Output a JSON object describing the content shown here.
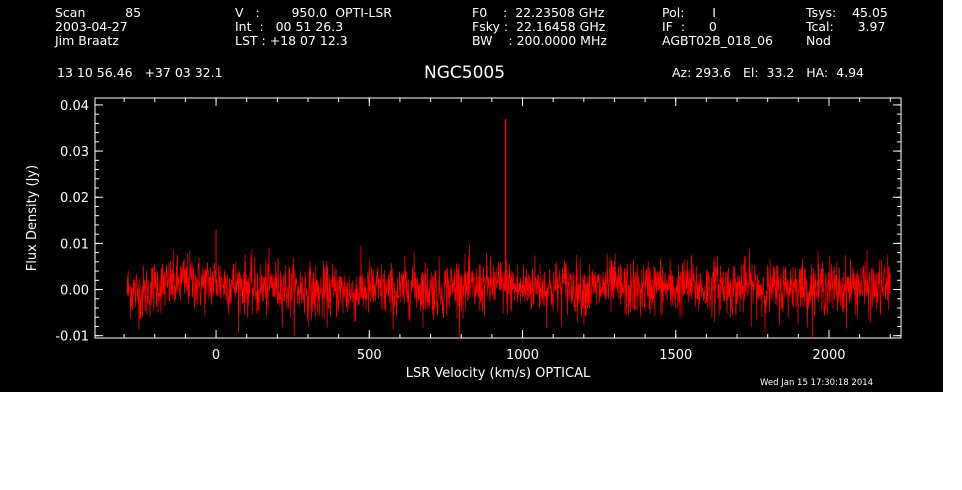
{
  "header": {
    "col1": [
      "Scan          85",
      "2003-04-27",
      "Jim Braatz"
    ],
    "col2": [
      "V   :        950.0  OPTI-LSR",
      "Int  :   00 51 26.3",
      "LST : +18 07 12.3"
    ],
    "col3": [
      "F0    :  22.23508 GHz",
      "Fsky :  22.16458 GHz",
      "BW    : 200.0000 MHz"
    ],
    "col4": [
      "Pol:       I",
      "IF  :      0",
      "AGBT02B_018_06"
    ],
    "col5": [
      "Tsys:    45.05",
      "Tcal:      3.97",
      "Nod"
    ],
    "coords": "13 10 56.46   +37 03 32.1",
    "source": "NGC5005",
    "azel": "Az: 293.6   El:  33.2   HA:  4.94"
  },
  "timestamp": "Wed Jan 15 17:30:18 2014",
  "colors": {
    "background": "#000000",
    "axes": "#ffffff",
    "trace": "#ff0000"
  },
  "chart_data": {
    "type": "line",
    "title": "NGC5005",
    "xlabel": "LSR Velocity (km/s) OPTICAL",
    "ylabel": "Flux Density (Jy)",
    "xlim": [
      -395,
      2235
    ],
    "ylim": [
      -0.0105,
      0.0415
    ],
    "xticks": [
      0,
      500,
      1000,
      1500,
      2000
    ],
    "xtick_labels": [
      "0",
      "500",
      "1000",
      "1500",
      "2000"
    ],
    "yticks": [
      -0.01,
      0.0,
      0.01,
      0.02,
      0.03,
      0.04
    ],
    "ytick_labels": [
      "-0.01",
      "0.00",
      "0.01",
      "0.02",
      "0.03",
      "0.04"
    ],
    "grid": false,
    "legend": "none",
    "series": [
      {
        "x": [
          -290,
          -240,
          -190,
          -140,
          -90,
          -40,
          0,
          40,
          90,
          140,
          190,
          240,
          290,
          340,
          390,
          440,
          490,
          540,
          590,
          640,
          690,
          740,
          790,
          840,
          890,
          945,
          990,
          1040,
          1090,
          1140,
          1190,
          1240,
          1290,
          1340,
          1390,
          1440,
          1490,
          1540,
          1590,
          1640,
          1690,
          1740,
          1790,
          1840,
          1890,
          1940,
          1990,
          2040,
          2090,
          2140,
          2200
        ],
        "y": [
          0.0,
          -0.001,
          0.001,
          0.001,
          0.002,
          0.001,
          0.002,
          0.001,
          0.001,
          0.0,
          0.001,
          0.0,
          0.0,
          -0.001,
          0.0,
          -0.001,
          0.0,
          0.0,
          -0.001,
          0.001,
          0.0,
          0.0,
          0.001,
          0.0,
          0.001,
          0.037,
          0.0,
          0.001,
          0.0,
          0.001,
          0.0,
          0.0,
          0.001,
          0.0,
          0.0,
          0.001,
          0.0,
          0.001,
          0.0,
          0.001,
          0.0,
          0.001,
          0.0,
          0.0,
          0.001,
          0.0,
          0.001,
          0.0,
          0.001,
          0.0,
          0.001
        ],
        "noise_rms": 0.003
      }
    ]
  }
}
